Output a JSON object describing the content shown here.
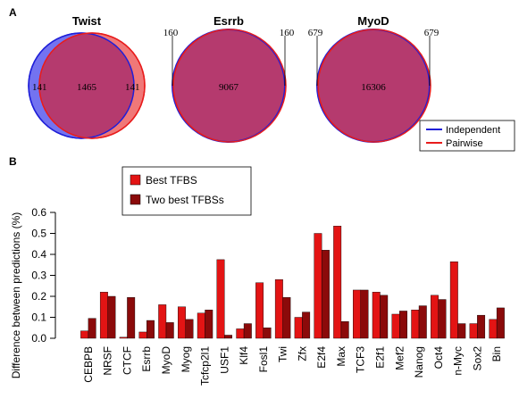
{
  "panel_a": {
    "label": "A",
    "venns": [
      {
        "title": "Twist",
        "left_only": "141",
        "overlap": "1465",
        "right_only": "141"
      },
      {
        "title": "Esrrb",
        "left_only": "160",
        "overlap": "9067",
        "right_only": "160"
      },
      {
        "title": "MyoD",
        "left_only": "679",
        "overlap": "16306",
        "right_only": "679"
      }
    ],
    "legend": [
      {
        "label": "Independent",
        "color": "#1f1fd8"
      },
      {
        "label": "Pairwise",
        "color": "#e81c1c"
      }
    ]
  },
  "panel_b": {
    "label": "B"
  },
  "colors": {
    "best": "#e31414",
    "two_best": "#8b0a0a",
    "venn_fill": "#b53a6e",
    "venn_blue": "#7373f0",
    "venn_red": "#f07878"
  },
  "chart_data": {
    "type": "bar",
    "ylabel": "Difference between predictions (%)",
    "ylim": [
      0,
      0.6
    ],
    "yticks": [
      "0.0",
      "0.1",
      "0.2",
      "0.3",
      "0.4",
      "0.5",
      "0.6"
    ],
    "legend_position": "top-left",
    "categories": [
      "CEBPB",
      "NRSF",
      "CTCF",
      "Esrrb",
      "MyoD",
      "Myog",
      "Tcfcp2l1",
      "USF1",
      "Klf4",
      "Fosl1",
      "Twi",
      "Zfx",
      "E2f4",
      "Max",
      "TCF3",
      "E2f1",
      "Mef2",
      "Nanog",
      "Oct4",
      "n-Myc",
      "Sox2",
      "Bin"
    ],
    "series": [
      {
        "name": "Best TFBS",
        "values": [
          0.035,
          0.22,
          0.005,
          0.03,
          0.16,
          0.15,
          0.12,
          0.375,
          0.045,
          0.265,
          0.28,
          0.1,
          0.5,
          0.535,
          0.23,
          0.22,
          0.115,
          0.135,
          0.205,
          0.365,
          0.07,
          0.09
        ]
      },
      {
        "name": "Two best TFBSs",
        "values": [
          0.095,
          0.2,
          0.195,
          0.085,
          0.075,
          0.09,
          0.135,
          0.015,
          0.07,
          0.05,
          0.195,
          0.125,
          0.42,
          0.08,
          0.23,
          0.205,
          0.13,
          0.155,
          0.185,
          0.07,
          0.11,
          0.145
        ]
      }
    ]
  }
}
